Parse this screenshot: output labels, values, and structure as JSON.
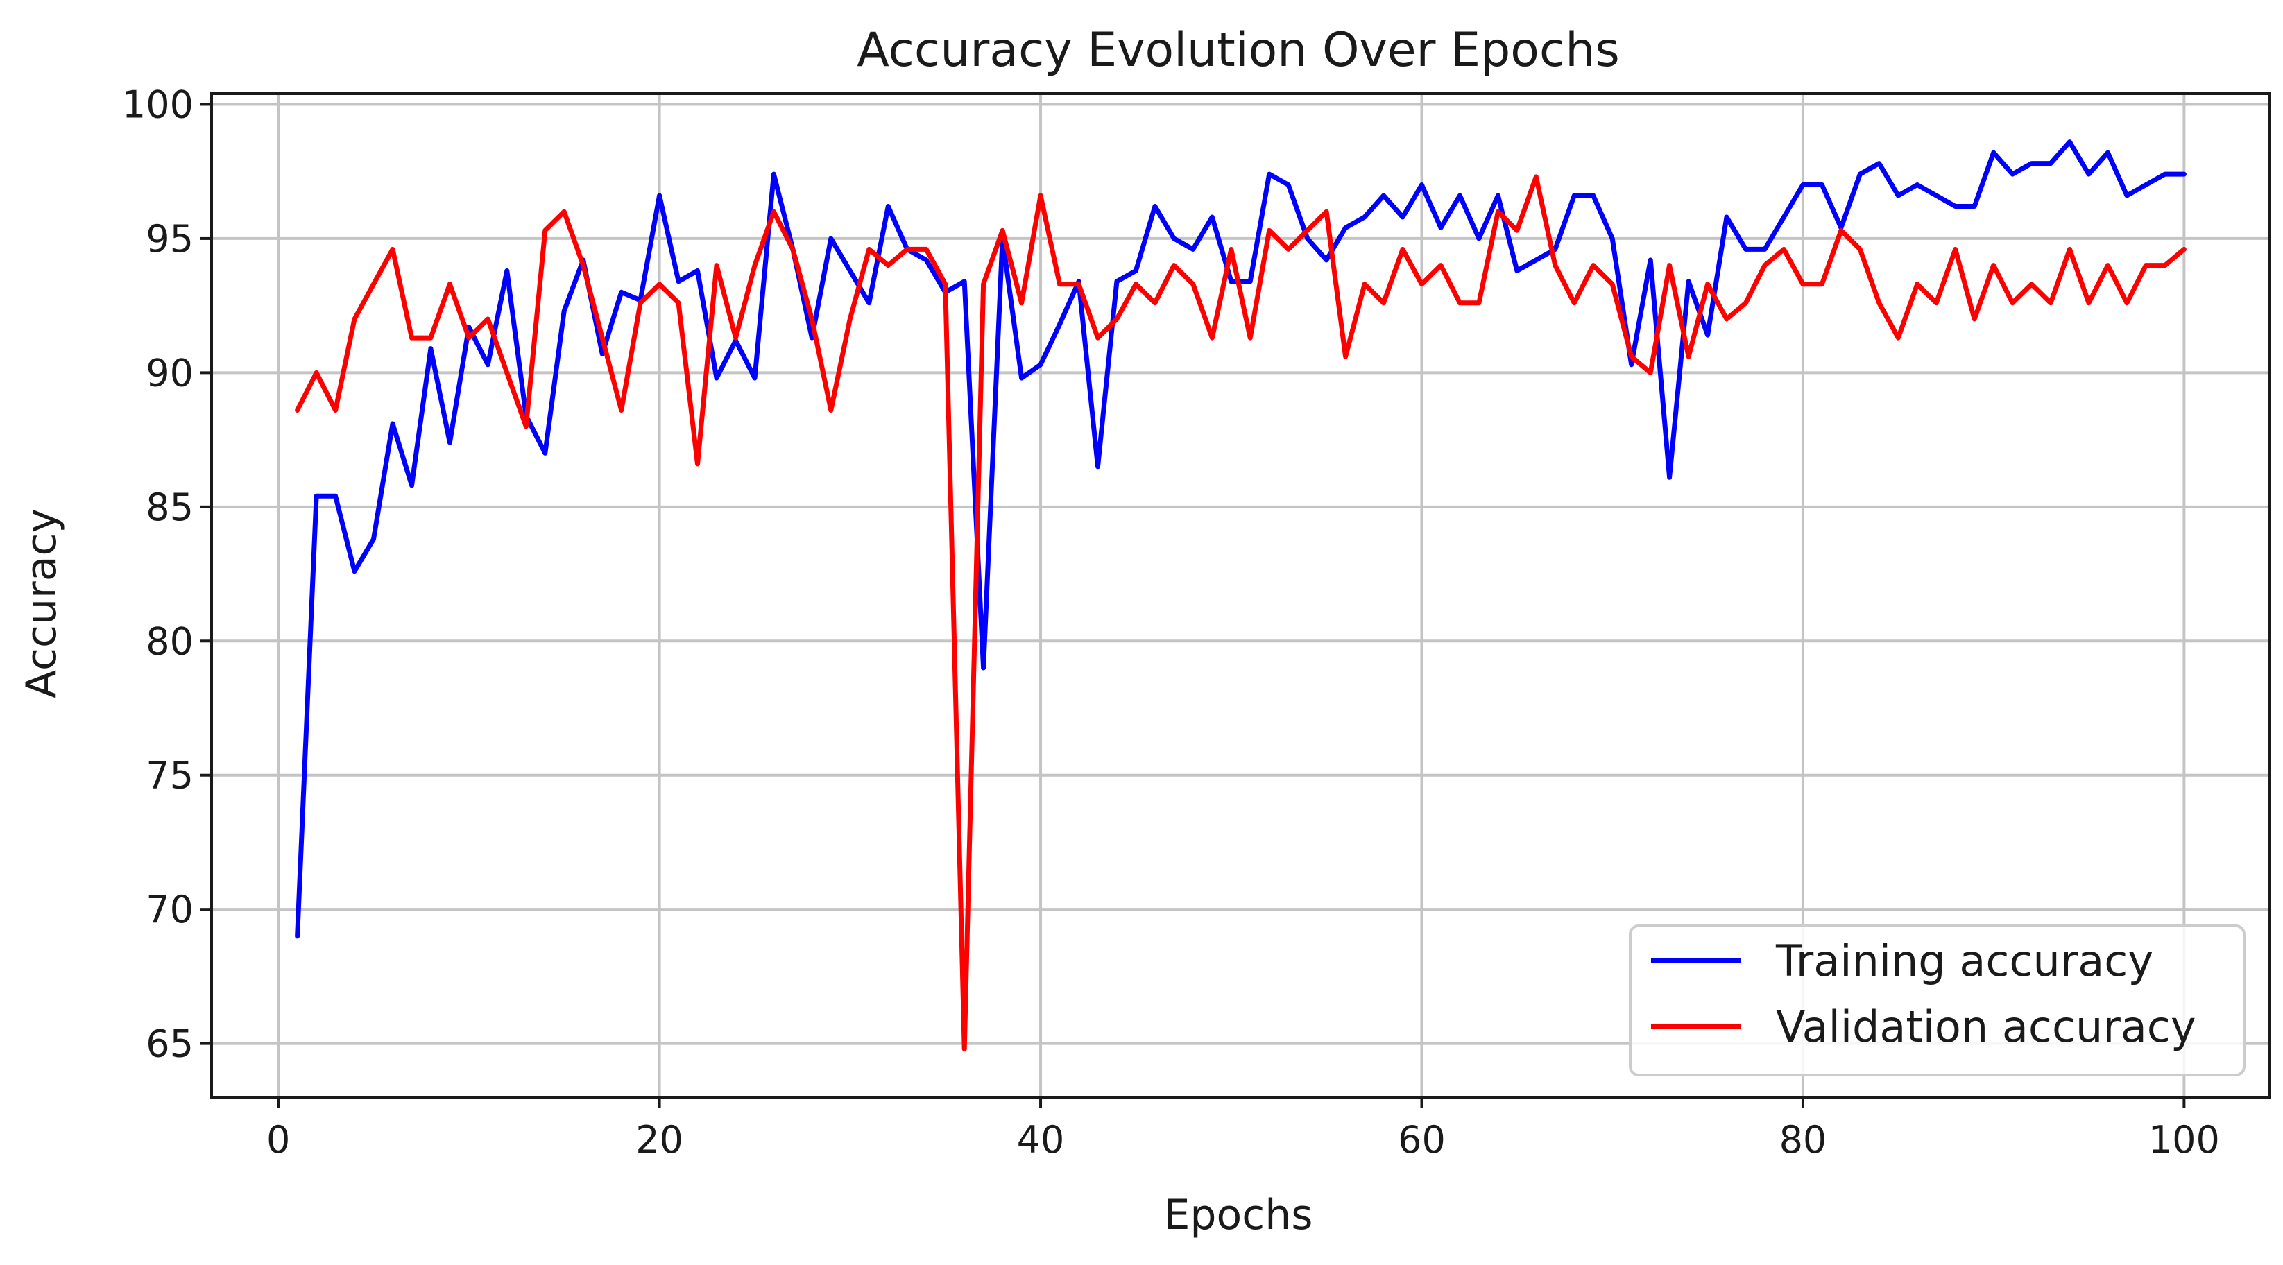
{
  "chart_data": {
    "type": "line",
    "title": "Accuracy Evolution Over Epochs",
    "xlabel": "Epochs",
    "ylabel": "Accuracy",
    "xlim": [
      -3.5,
      104.5
    ],
    "ylim": [
      63,
      100.4
    ],
    "xticks": [
      0,
      20,
      40,
      60,
      80,
      100
    ],
    "yticks": [
      65,
      70,
      75,
      80,
      85,
      90,
      95,
      100
    ],
    "grid": true,
    "legend_position": "lower-right",
    "x": [
      1,
      2,
      3,
      4,
      5,
      6,
      7,
      8,
      9,
      10,
      11,
      12,
      13,
      14,
      15,
      16,
      17,
      18,
      19,
      20,
      21,
      22,
      23,
      24,
      25,
      26,
      27,
      28,
      29,
      30,
      31,
      32,
      33,
      34,
      35,
      36,
      37,
      38,
      39,
      40,
      41,
      42,
      43,
      44,
      45,
      46,
      47,
      48,
      49,
      50,
      51,
      52,
      53,
      54,
      55,
      56,
      57,
      58,
      59,
      60,
      61,
      62,
      63,
      64,
      65,
      66,
      67,
      68,
      69,
      70,
      71,
      72,
      73,
      74,
      75,
      76,
      77,
      78,
      79,
      80,
      81,
      82,
      83,
      84,
      85,
      86,
      87,
      88,
      89,
      90,
      91,
      92,
      93,
      94,
      95,
      96,
      97,
      98,
      99,
      100
    ],
    "series": [
      {
        "name": "Training accuracy",
        "color": "#0000ff",
        "values": [
          69.0,
          85.4,
          85.4,
          82.6,
          83.8,
          88.1,
          85.8,
          90.9,
          87.4,
          91.7,
          90.3,
          93.8,
          88.4,
          87.0,
          92.3,
          94.2,
          90.7,
          93.0,
          92.7,
          96.6,
          93.4,
          93.8,
          89.8,
          91.2,
          89.8,
          97.4,
          94.6,
          91.3,
          95.0,
          93.8,
          92.6,
          96.2,
          94.6,
          94.2,
          93.0,
          93.4,
          79.0,
          95.0,
          89.8,
          90.3,
          91.8,
          93.4,
          86.5,
          93.4,
          93.8,
          96.2,
          95.0,
          94.6,
          95.8,
          93.4,
          93.4,
          97.4,
          97.0,
          95.0,
          94.2,
          95.4,
          95.8,
          96.6,
          95.8,
          97.0,
          95.4,
          96.6,
          95.0,
          96.6,
          93.8,
          94.2,
          94.6,
          96.6,
          96.6,
          95.0,
          90.3,
          94.2,
          86.1,
          93.4,
          91.4,
          95.8,
          94.6,
          94.6,
          95.8,
          97.0,
          97.0,
          95.4,
          97.4,
          97.8,
          96.6,
          97.0,
          96.6,
          96.2,
          96.2,
          98.2,
          97.4,
          97.8,
          97.8,
          98.6,
          97.4,
          98.2,
          96.6,
          97.0,
          97.4,
          97.4
        ]
      },
      {
        "name": "Validation accuracy",
        "color": "#ff0000",
        "values": [
          88.6,
          90.0,
          88.6,
          92.0,
          93.3,
          94.6,
          91.3,
          91.3,
          93.3,
          91.3,
          92.0,
          90.0,
          88.0,
          95.3,
          96.0,
          94.0,
          91.3,
          88.6,
          92.6,
          93.3,
          92.6,
          86.6,
          94.0,
          91.3,
          94.0,
          96.0,
          94.6,
          92.0,
          88.6,
          92.0,
          94.6,
          94.0,
          94.6,
          94.6,
          93.3,
          64.8,
          93.3,
          95.3,
          92.6,
          96.6,
          93.3,
          93.3,
          91.3,
          92.0,
          93.3,
          92.6,
          94.0,
          93.3,
          91.3,
          94.6,
          91.3,
          95.3,
          94.6,
          95.3,
          96.0,
          90.6,
          93.3,
          92.6,
          94.6,
          93.3,
          94.0,
          92.6,
          92.6,
          96.0,
          95.3,
          97.3,
          94.0,
          92.6,
          94.0,
          93.3,
          90.6,
          90.0,
          94.0,
          90.6,
          93.3,
          92.0,
          92.6,
          94.0,
          94.6,
          93.3,
          93.3,
          95.3,
          94.6,
          92.6,
          91.3,
          93.3,
          92.6,
          94.6,
          92.0,
          94.0,
          92.6,
          93.3,
          92.6,
          94.6,
          92.6,
          94.0,
          92.6,
          94.0,
          94.0,
          94.6
        ]
      }
    ]
  }
}
